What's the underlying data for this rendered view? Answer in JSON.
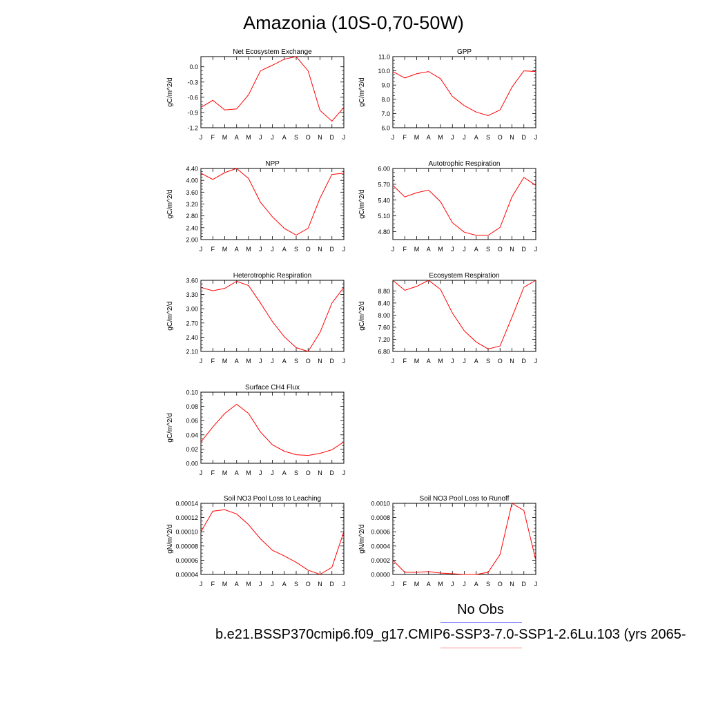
{
  "figure": {
    "title": "Amazonia (10S-0,70-50W)",
    "legend": {
      "obs_label": "No Obs",
      "obs_color": "#8a8aff",
      "model_label": "b.e21.BSSP370cmip6.f09_g17.CMIP6-SSP3-7.0-SSP1-2.6Lu.103 (yrs 2065-",
      "model_color": "#ff8a8a"
    },
    "line_color": "#ff0000"
  },
  "chart_data": [
    {
      "type": "line",
      "title": "Net Ecosystem Exchange",
      "ylabel": "gC/m^2/d",
      "categories": [
        "J",
        "F",
        "M",
        "A",
        "M",
        "J",
        "J",
        "A",
        "S",
        "O",
        "N",
        "D",
        "J"
      ],
      "values": [
        -0.8,
        -0.66,
        -0.85,
        -0.83,
        -0.55,
        -0.08,
        0.03,
        0.15,
        0.2,
        -0.08,
        -0.86,
        -1.07,
        -0.8
      ],
      "ylim": [
        -1.2,
        0.2
      ],
      "yticks": [
        "0.0",
        "-0.3",
        "-0.6",
        "-0.9",
        "-1.2"
      ]
    },
    {
      "type": "line",
      "title": "GPP",
      "ylabel": "gC/m^2/d",
      "categories": [
        "J",
        "F",
        "M",
        "A",
        "M",
        "J",
        "J",
        "A",
        "S",
        "O",
        "N",
        "D",
        "J"
      ],
      "values": [
        9.95,
        9.5,
        9.8,
        9.95,
        9.45,
        8.2,
        7.55,
        7.1,
        6.85,
        7.25,
        8.85,
        10.0,
        9.95
      ],
      "ylim": [
        6.0,
        11.0
      ],
      "yticks": [
        "11.0",
        "10.0",
        "9.0",
        "8.0",
        "7.0",
        "6.0"
      ]
    },
    {
      "type": "line",
      "title": "NPP",
      "ylabel": "gC/m^2/d",
      "categories": [
        "J",
        "F",
        "M",
        "A",
        "M",
        "J",
        "J",
        "A",
        "S",
        "O",
        "N",
        "D",
        "J"
      ],
      "values": [
        4.24,
        4.03,
        4.26,
        4.4,
        4.06,
        3.26,
        2.77,
        2.38,
        2.15,
        2.38,
        3.4,
        4.2,
        4.24
      ],
      "ylim": [
        2.0,
        4.4
      ],
      "yticks": [
        "4.40",
        "4.00",
        "3.60",
        "3.20",
        "2.80",
        "2.40",
        "2.00"
      ]
    },
    {
      "type": "line",
      "title": "Autotrophic Respiration",
      "ylabel": "gC/m^2/d",
      "categories": [
        "J",
        "F",
        "M",
        "A",
        "M",
        "J",
        "J",
        "A",
        "S",
        "O",
        "N",
        "D",
        "J"
      ],
      "values": [
        5.68,
        5.46,
        5.54,
        5.59,
        5.37,
        4.97,
        4.79,
        4.73,
        4.73,
        4.88,
        5.46,
        5.83,
        5.68
      ],
      "ylim": [
        4.65,
        6.0
      ],
      "yticks": [
        "6.00",
        "5.70",
        "5.40",
        "5.10",
        "4.80"
      ]
    },
    {
      "type": "line",
      "title": "Heterotrophic Respiration",
      "ylabel": "gC/m^2/d",
      "categories": [
        "J",
        "F",
        "M",
        "A",
        "M",
        "J",
        "J",
        "A",
        "S",
        "O",
        "N",
        "D",
        "J"
      ],
      "values": [
        3.45,
        3.38,
        3.43,
        3.58,
        3.49,
        3.12,
        2.73,
        2.41,
        2.18,
        2.1,
        2.5,
        3.12,
        3.45
      ],
      "ylim": [
        2.1,
        3.6
      ],
      "yticks": [
        "3.60",
        "3.30",
        "3.00",
        "2.70",
        "2.40",
        "2.10"
      ]
    },
    {
      "type": "line",
      "title": "Ecosystem Respiration",
      "ylabel": "gC/m^2/d",
      "categories": [
        "J",
        "F",
        "M",
        "A",
        "M",
        "J",
        "J",
        "A",
        "S",
        "O",
        "N",
        "D",
        "J"
      ],
      "values": [
        9.15,
        8.82,
        8.95,
        9.15,
        8.85,
        8.07,
        7.48,
        7.11,
        6.88,
        6.98,
        7.93,
        8.92,
        9.15
      ],
      "ylim": [
        6.8,
        9.15
      ],
      "yticks": [
        "8.80",
        "8.40",
        "8.00",
        "7.60",
        "7.20",
        "6.80"
      ]
    },
    {
      "type": "line",
      "title": "Surface CH4 Flux",
      "ylabel": "gC/m^2/d",
      "categories": [
        "J",
        "F",
        "M",
        "A",
        "M",
        "J",
        "J",
        "A",
        "S",
        "O",
        "N",
        "D",
        "J"
      ],
      "values": [
        0.03,
        0.051,
        0.07,
        0.083,
        0.07,
        0.044,
        0.026,
        0.017,
        0.012,
        0.011,
        0.014,
        0.019,
        0.03
      ],
      "ylim": [
        0.0,
        0.1
      ],
      "yticks": [
        "0.10",
        "0.08",
        "0.06",
        "0.04",
        "0.02",
        "0.00"
      ]
    },
    {
      "type": "line",
      "title": "Soil NO3 Pool Loss to Leaching",
      "ylabel": "gN/m^2/d",
      "categories": [
        "J",
        "F",
        "M",
        "A",
        "M",
        "J",
        "J",
        "A",
        "S",
        "O",
        "N",
        "D",
        "J"
      ],
      "values": [
        0.0001,
        0.000129,
        0.000131,
        0.000125,
        0.00011,
        9e-05,
        7.4e-05,
        6.6e-05,
        5.7e-05,
        4.6e-05,
        4e-05,
        5e-05,
        0.0001
      ],
      "ylim": [
        4e-05,
        0.00014
      ],
      "yticks": [
        "0.00014",
        "0.00012",
        "0.00010",
        "0.00008",
        "0.00006",
        "0.00004"
      ]
    },
    {
      "type": "line",
      "title": "Soil NO3 Pool Loss to Runoff",
      "ylabel": "gN/m^2/d",
      "categories": [
        "J",
        "F",
        "M",
        "A",
        "M",
        "J",
        "J",
        "A",
        "S",
        "O",
        "N",
        "D",
        "J"
      ],
      "values": [
        0.0002,
        3e-05,
        3e-05,
        4e-05,
        2e-05,
        1e-05,
        0.0,
        0.0,
        3e-05,
        0.00028,
        0.001,
        0.0009,
        0.0002
      ],
      "ylim": [
        0.0,
        0.001
      ],
      "yticks": [
        "0.0010",
        "0.0008",
        "0.0006",
        "0.0004",
        "0.0002",
        "0.0000"
      ]
    }
  ]
}
